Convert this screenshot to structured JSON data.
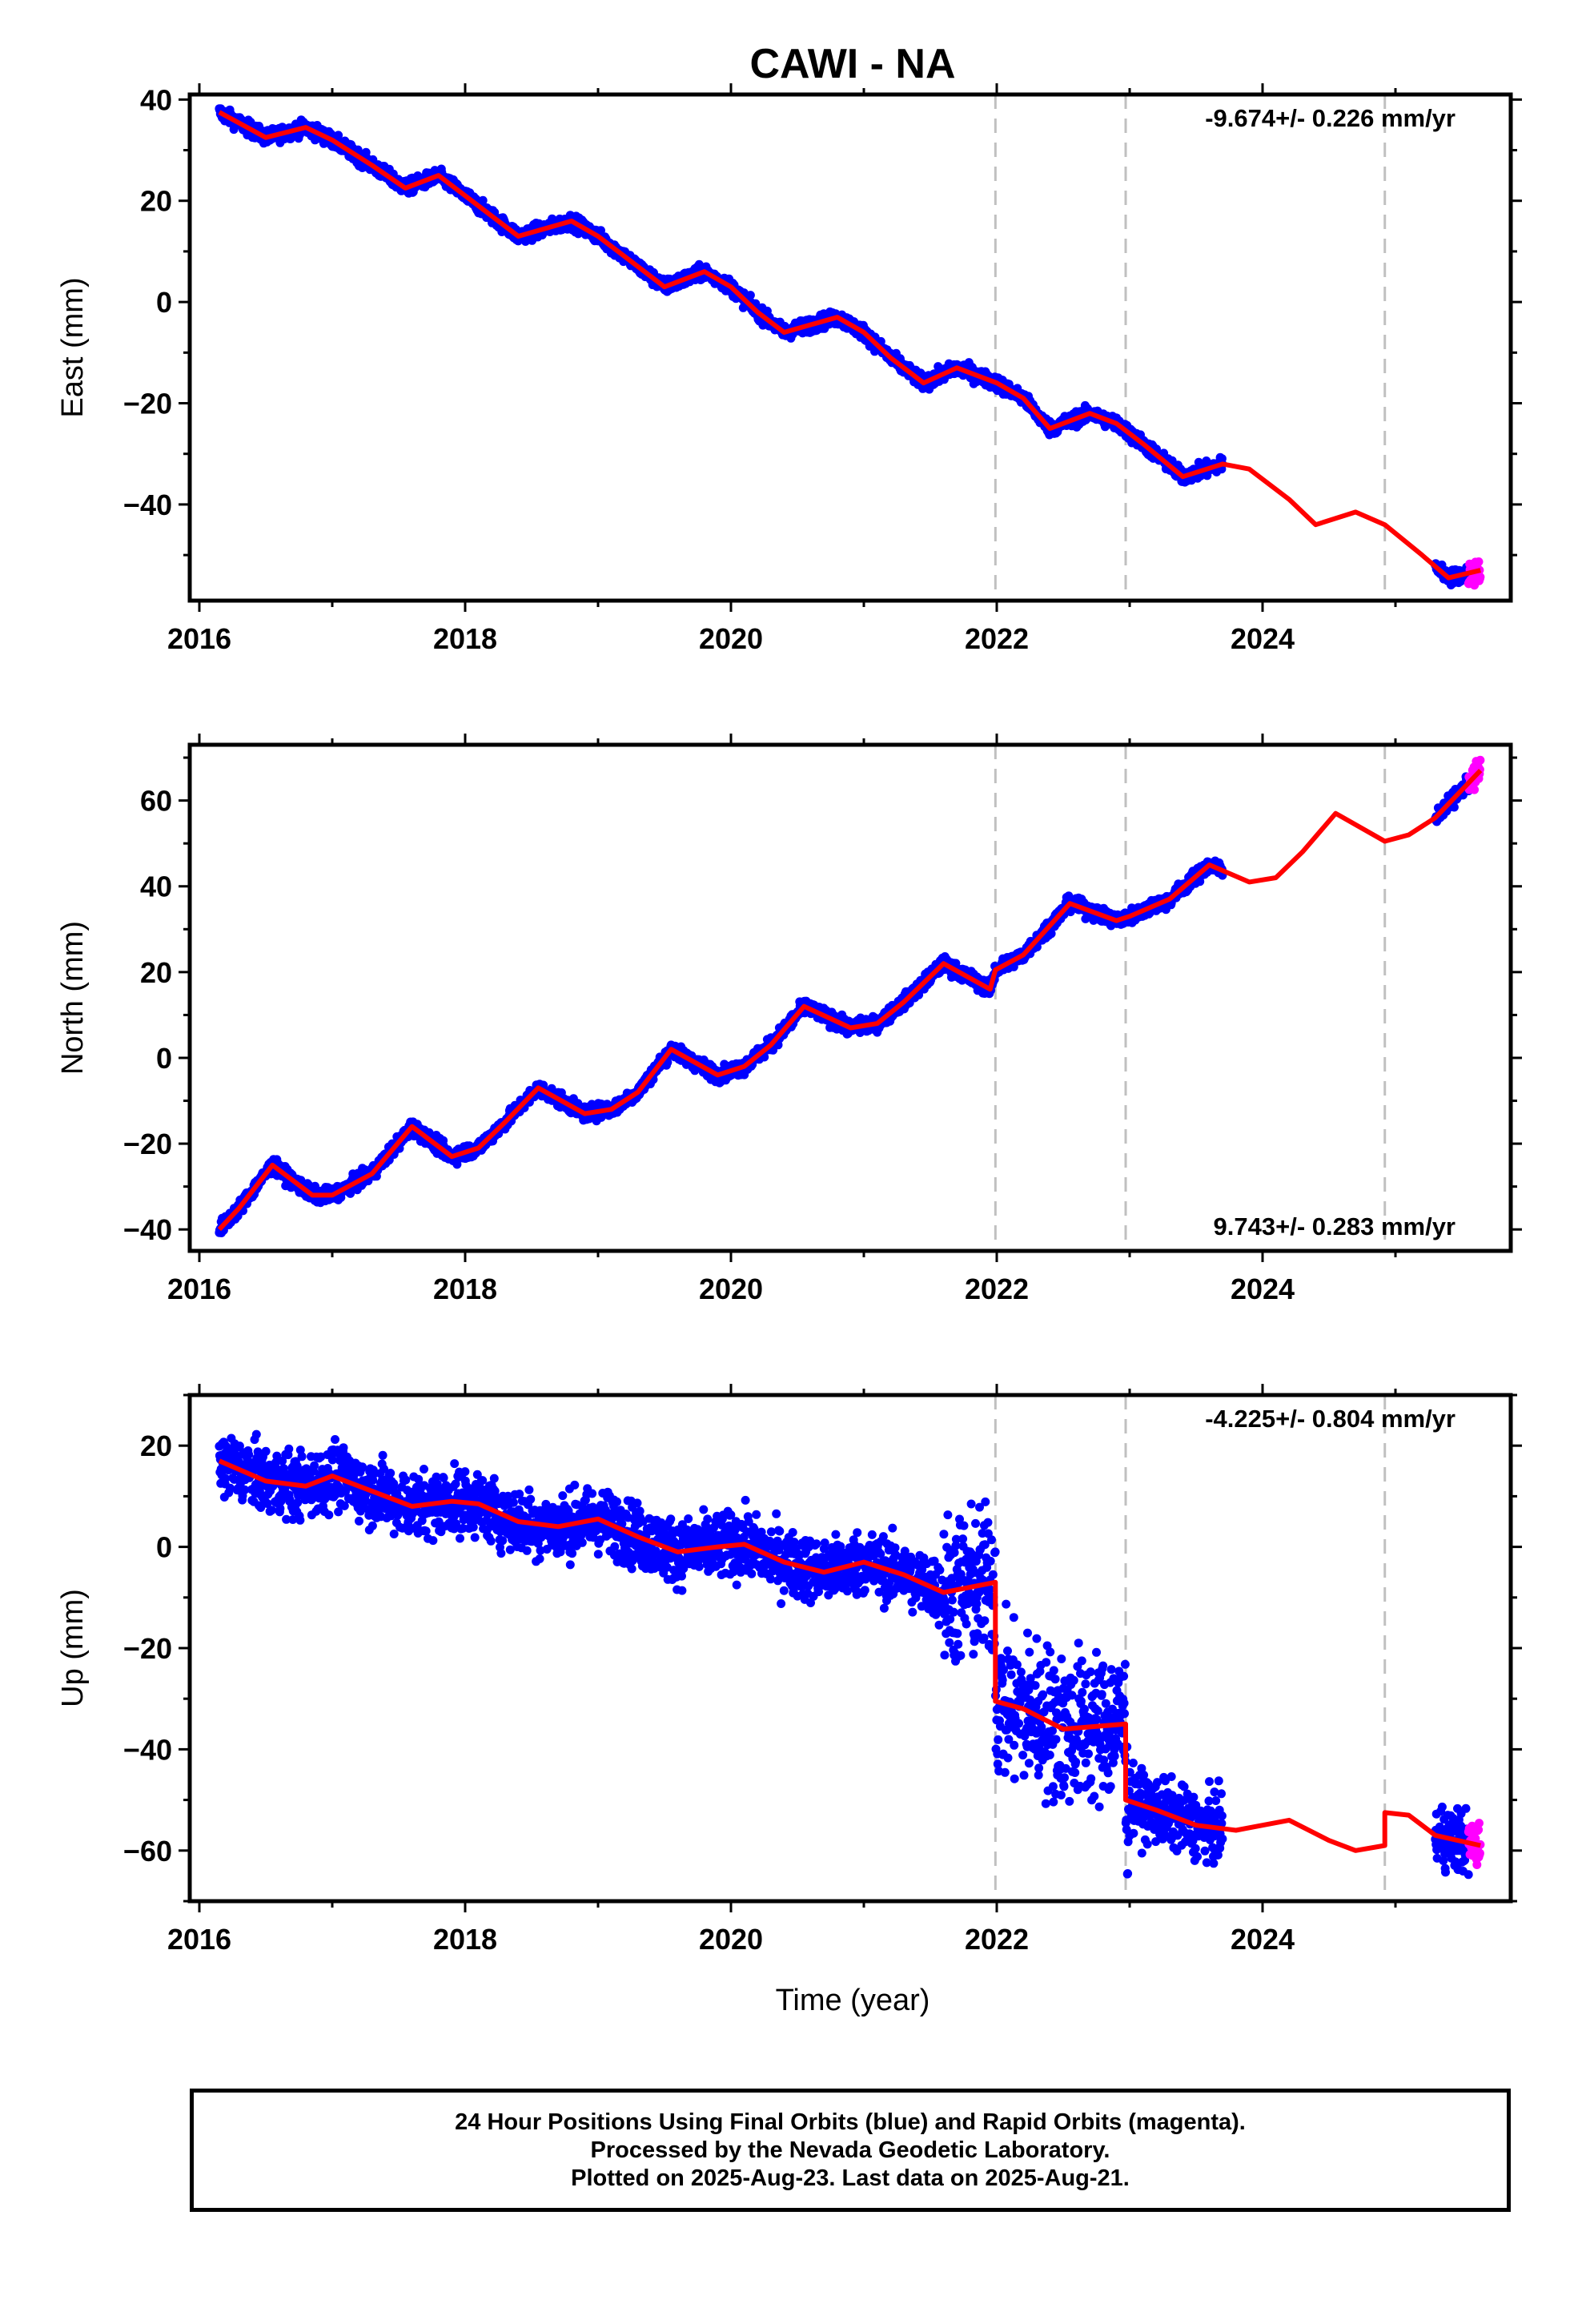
{
  "chart_data": {
    "title": "CAWI - NA",
    "type": "scatter",
    "xlabel": "Time (year)",
    "xlim": [
      2016.0,
      2025.9
    ],
    "xticks": [
      "2016",
      "2018",
      "2020",
      "2022",
      "2024"
    ],
    "steps": [
      2021.99,
      2022.97,
      2024.92
    ],
    "colors": {
      "final": "#0000ff",
      "rapid": "#ff00ff",
      "model": "#ff0000",
      "steps": "#c0c0c0"
    },
    "panels": [
      {
        "name": "East",
        "ylabel": "East (mm)",
        "ylim": [
          -59,
          41
        ],
        "yticks": [
          "40",
          "20",
          "0",
          "−20",
          "−40"
        ],
        "yvals": [
          40,
          20,
          0,
          -20,
          -40
        ],
        "rate_text": "-9.674+/- 0.226 mm/yr",
        "rate_position": "top-right",
        "final_range": [
          2016.15,
          2023.7
        ],
        "rapid_range": [
          2025.55,
          2025.64
        ],
        "gap_range": [
          2023.7,
          2025.3
        ],
        "final_scatter_mm": 1.0,
        "rapid_scatter_mm": 2.0,
        "model_points": [
          [
            2016.15,
            37.5
          ],
          [
            2016.5,
            32.5
          ],
          [
            2016.8,
            34.5
          ],
          [
            2017.0,
            32
          ],
          [
            2017.3,
            27
          ],
          [
            2017.55,
            22.5
          ],
          [
            2017.8,
            25
          ],
          [
            2018.0,
            21
          ],
          [
            2018.2,
            17
          ],
          [
            2018.4,
            13
          ],
          [
            2018.8,
            16
          ],
          [
            2019.0,
            13
          ],
          [
            2019.3,
            7
          ],
          [
            2019.5,
            3
          ],
          [
            2019.8,
            6
          ],
          [
            2020.0,
            3
          ],
          [
            2020.2,
            -2
          ],
          [
            2020.4,
            -6
          ],
          [
            2020.8,
            -3
          ],
          [
            2021.0,
            -6
          ],
          [
            2021.2,
            -11
          ],
          [
            2021.45,
            -16
          ],
          [
            2021.7,
            -13
          ],
          [
            2022.0,
            -16
          ],
          [
            2022.2,
            -19
          ],
          [
            2022.4,
            -25
          ],
          [
            2022.7,
            -22
          ],
          [
            2022.9,
            -24
          ],
          [
            2023.1,
            -28
          ],
          [
            2023.4,
            -34.5
          ],
          [
            2023.7,
            -32
          ],
          [
            2023.9,
            -33
          ],
          [
            2024.2,
            -39
          ],
          [
            2024.4,
            -44
          ],
          [
            2024.7,
            -41.5
          ],
          [
            2024.92,
            -44
          ],
          [
            2025.2,
            -50
          ],
          [
            2025.4,
            -54.5
          ],
          [
            2025.64,
            -53
          ]
        ]
      },
      {
        "name": "North",
        "ylabel": "North (mm)",
        "ylim": [
          -45,
          73
        ],
        "yticks": [
          "60",
          "40",
          "20",
          "0",
          "−20",
          "−40"
        ],
        "yvals": [
          60,
          40,
          20,
          0,
          -20,
          -40
        ],
        "rate_text": "9.743+/- 0.283 mm/yr",
        "rate_position": "bottom-right",
        "final_range": [
          2016.15,
          2023.7
        ],
        "rapid_range": [
          2025.55,
          2025.64
        ],
        "gap_range": [
          2023.7,
          2025.3
        ],
        "final_scatter_mm": 1.2,
        "rapid_scatter_mm": 2.0,
        "model_points": [
          [
            2016.15,
            -40
          ],
          [
            2016.3,
            -35
          ],
          [
            2016.55,
            -25
          ],
          [
            2016.85,
            -32
          ],
          [
            2017.0,
            -32
          ],
          [
            2017.3,
            -27
          ],
          [
            2017.6,
            -16
          ],
          [
            2017.9,
            -23
          ],
          [
            2018.1,
            -21
          ],
          [
            2018.3,
            -15
          ],
          [
            2018.55,
            -7
          ],
          [
            2018.9,
            -13
          ],
          [
            2019.1,
            -12
          ],
          [
            2019.3,
            -8
          ],
          [
            2019.55,
            2
          ],
          [
            2019.9,
            -4
          ],
          [
            2020.1,
            -2
          ],
          [
            2020.3,
            3
          ],
          [
            2020.55,
            12
          ],
          [
            2020.9,
            7
          ],
          [
            2021.1,
            8
          ],
          [
            2021.3,
            13
          ],
          [
            2021.6,
            22
          ],
          [
            2021.95,
            16
          ],
          [
            2021.99,
            20.5
          ],
          [
            2022.2,
            24
          ],
          [
            2022.55,
            36
          ],
          [
            2022.9,
            32
          ],
          [
            2023.0,
            33
          ],
          [
            2023.3,
            37
          ],
          [
            2023.6,
            45
          ],
          [
            2023.9,
            41
          ],
          [
            2024.1,
            42
          ],
          [
            2024.3,
            48
          ],
          [
            2024.55,
            57
          ],
          [
            2024.92,
            50.5
          ],
          [
            2025.1,
            52
          ],
          [
            2025.3,
            56
          ],
          [
            2025.64,
            67
          ]
        ]
      },
      {
        "name": "Up",
        "ylabel": "Up (mm)",
        "ylim": [
          -70,
          30
        ],
        "yticks": [
          "20",
          "0",
          "−20",
          "−40",
          "−60"
        ],
        "yvals": [
          20,
          0,
          -20,
          -40,
          -60
        ],
        "rate_text": "-4.225+/- 0.804 mm/yr",
        "rate_position": "top-right",
        "final_range": [
          2016.15,
          2023.7
        ],
        "rapid_range": [
          2025.55,
          2025.64
        ],
        "gap_range": [
          2023.7,
          2025.3
        ],
        "final_scatter_mm": 4.5,
        "rapid_scatter_mm": 3.5,
        "model_points": [
          [
            2016.15,
            17
          ],
          [
            2016.5,
            13
          ],
          [
            2016.8,
            12
          ],
          [
            2017.0,
            14
          ],
          [
            2017.3,
            11
          ],
          [
            2017.6,
            8
          ],
          [
            2017.9,
            9
          ],
          [
            2018.1,
            8.5
          ],
          [
            2018.4,
            5
          ],
          [
            2018.7,
            4
          ],
          [
            2019.0,
            5.5
          ],
          [
            2019.3,
            2
          ],
          [
            2019.6,
            -1
          ],
          [
            2019.9,
            0
          ],
          [
            2020.1,
            0.5
          ],
          [
            2020.4,
            -3
          ],
          [
            2020.7,
            -5
          ],
          [
            2021.0,
            -3
          ],
          [
            2021.3,
            -5.5
          ],
          [
            2021.6,
            -9
          ],
          [
            2021.99,
            -7
          ],
          [
            2021.99,
            -30.5
          ],
          [
            2022.2,
            -32
          ],
          [
            2022.5,
            -36
          ],
          [
            2022.97,
            -35
          ],
          [
            2022.97,
            -50
          ],
          [
            2023.2,
            -52
          ],
          [
            2023.5,
            -55
          ],
          [
            2023.8,
            -56
          ],
          [
            2024.0,
            -55
          ],
          [
            2024.2,
            -54
          ],
          [
            2024.5,
            -58
          ],
          [
            2024.7,
            -60
          ],
          [
            2024.92,
            -59
          ],
          [
            2024.92,
            -52.5
          ],
          [
            2025.1,
            -53
          ],
          [
            2025.3,
            -57
          ],
          [
            2025.64,
            -59
          ]
        ]
      }
    ]
  },
  "footer": {
    "line1": "24 Hour Positions Using Final Orbits (blue) and Rapid Orbits (magenta).",
    "line2": "Processed by the Nevada Geodetic Laboratory.",
    "line3": "Plotted on 2025-Aug-23. Last data on 2025-Aug-21."
  }
}
